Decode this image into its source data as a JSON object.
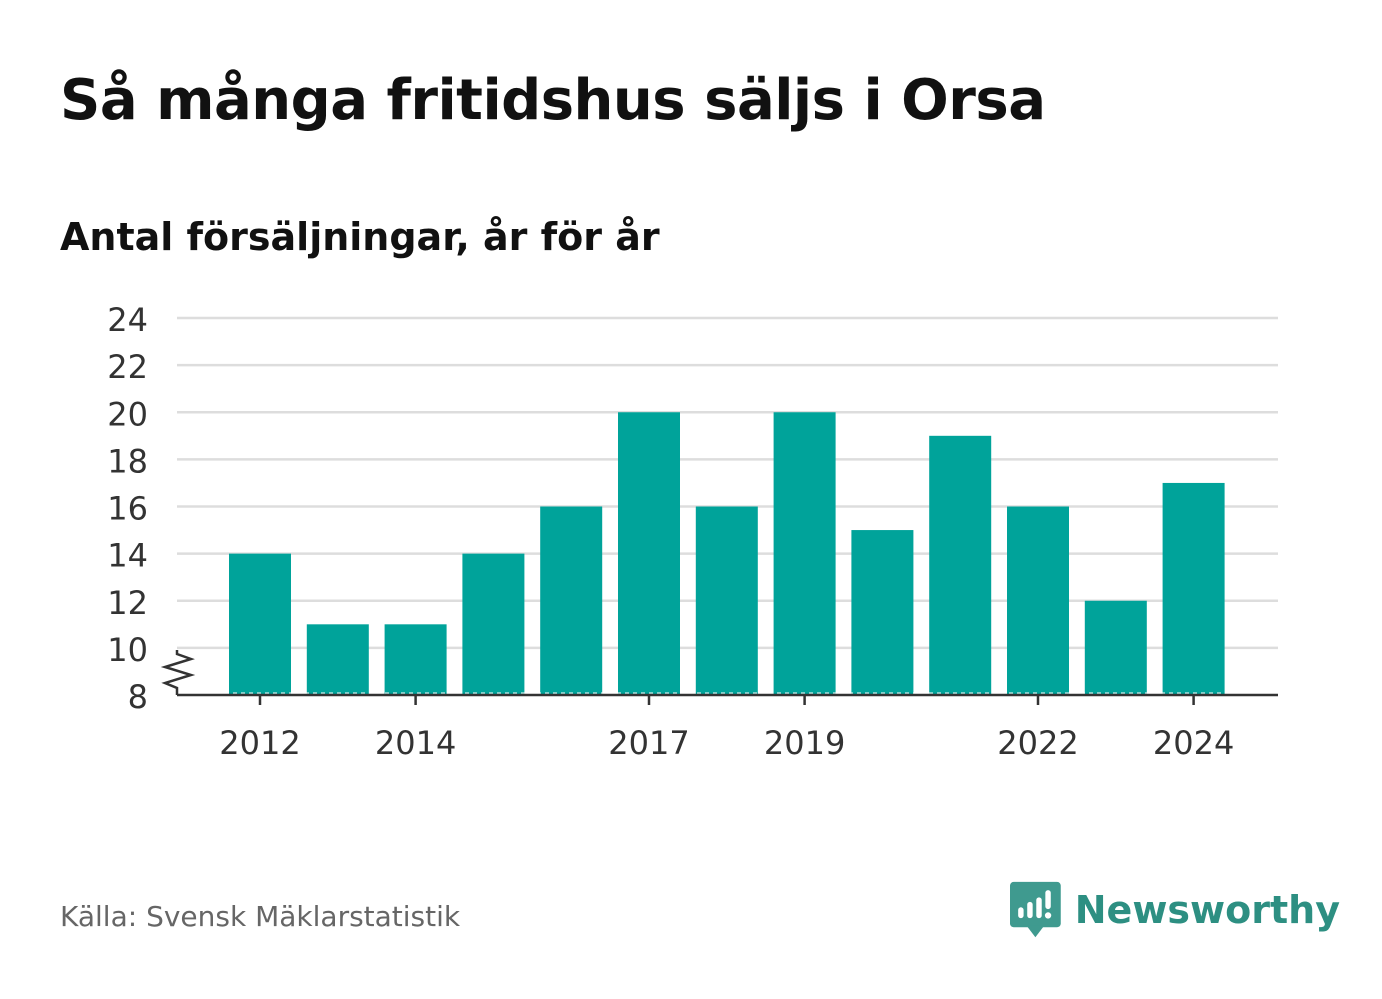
{
  "title": "Så många fritidshus säljs i Orsa",
  "subtitle": "Antal försäljningar, år för år",
  "source": "Källa: Svensk Mäklarstatistik",
  "brand": {
    "name": "Newsworthy",
    "icon": "newsworthy-logo-icon",
    "color": "#2d8f82"
  },
  "colors": {
    "bar": "#00a39a",
    "grid": "#dddddd",
    "axis": "#333333",
    "text": "#111111",
    "tick_text": "#333333"
  },
  "chart_data": {
    "type": "bar",
    "categories": [
      "2012",
      "2013",
      "2014",
      "2015",
      "2016",
      "2017",
      "2018",
      "2019",
      "2020",
      "2021",
      "2022",
      "2023",
      "2024"
    ],
    "values": [
      14,
      11,
      11,
      14,
      16,
      20,
      16,
      20,
      15,
      19,
      16,
      12,
      17
    ],
    "x_tick_labels": [
      "2012",
      "2014",
      "2017",
      "2019",
      "2022",
      "2024"
    ],
    "y_ticks": [
      8,
      10,
      12,
      14,
      16,
      18,
      20,
      22,
      24
    ],
    "ylim": [
      8,
      24
    ],
    "axis_break": true,
    "grid": true,
    "legend": "none"
  }
}
